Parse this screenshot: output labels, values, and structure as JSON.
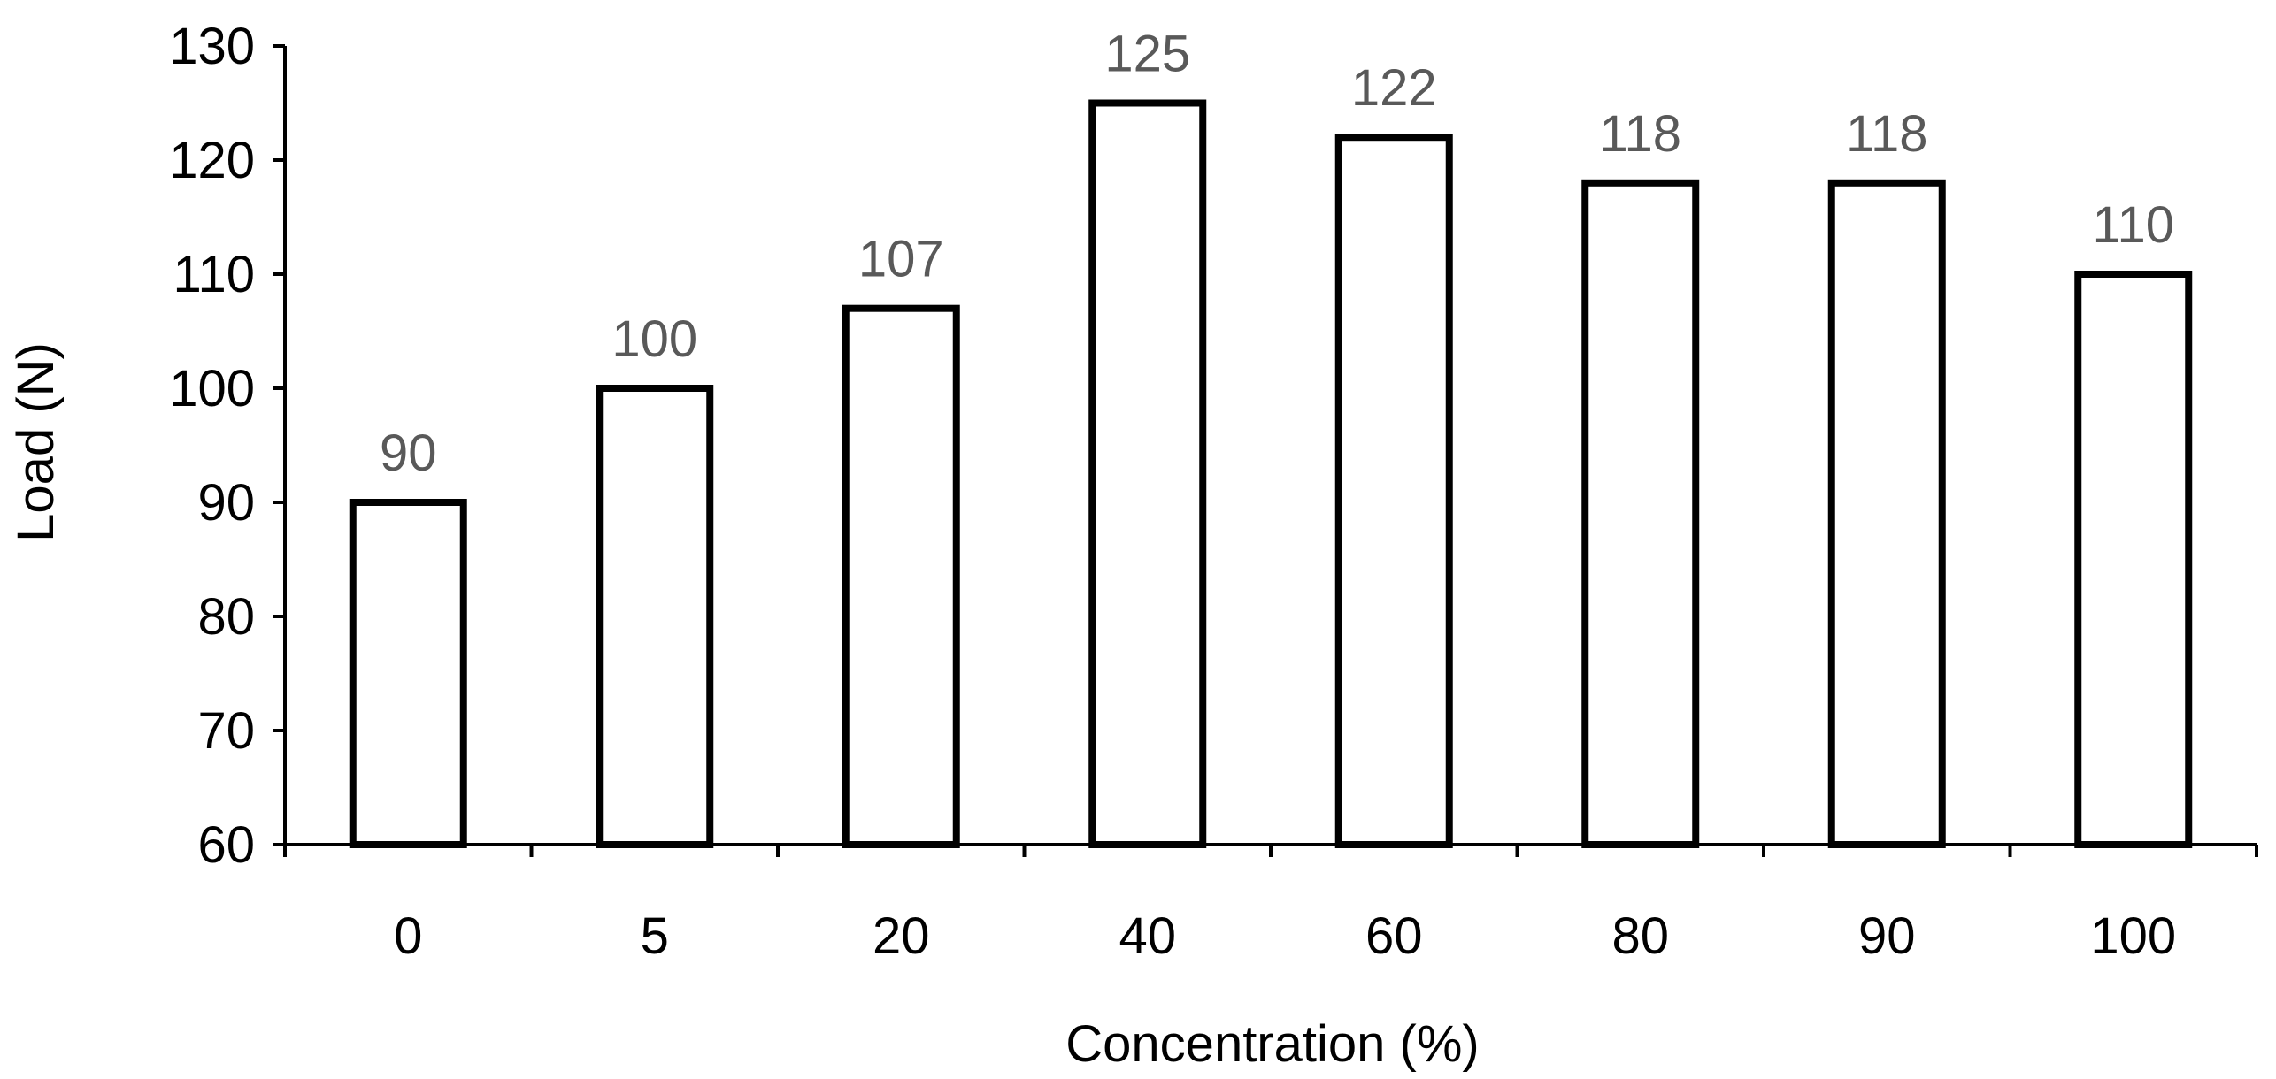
{
  "chart_data": {
    "type": "bar",
    "title": "",
    "xlabel": "Concentration (%)",
    "ylabel": "Load (N)",
    "categories": [
      "0",
      "5",
      "20",
      "40",
      "60",
      "80",
      "90",
      "100"
    ],
    "values": [
      90,
      100,
      107,
      125,
      122,
      118,
      118,
      110
    ],
    "data_labels": [
      "90",
      "100",
      "107",
      "125",
      "122",
      "118",
      "118",
      "110"
    ],
    "ylim": [
      60,
      130
    ],
    "yticks": [
      "60",
      "70",
      "80",
      "90",
      "100",
      "110",
      "120",
      "130"
    ],
    "grid": false,
    "legend": "none",
    "colors": {
      "bar_fill": "#ffffff",
      "bar_stroke": "#000000",
      "data_label": "#595959",
      "axis": "#000000"
    }
  }
}
